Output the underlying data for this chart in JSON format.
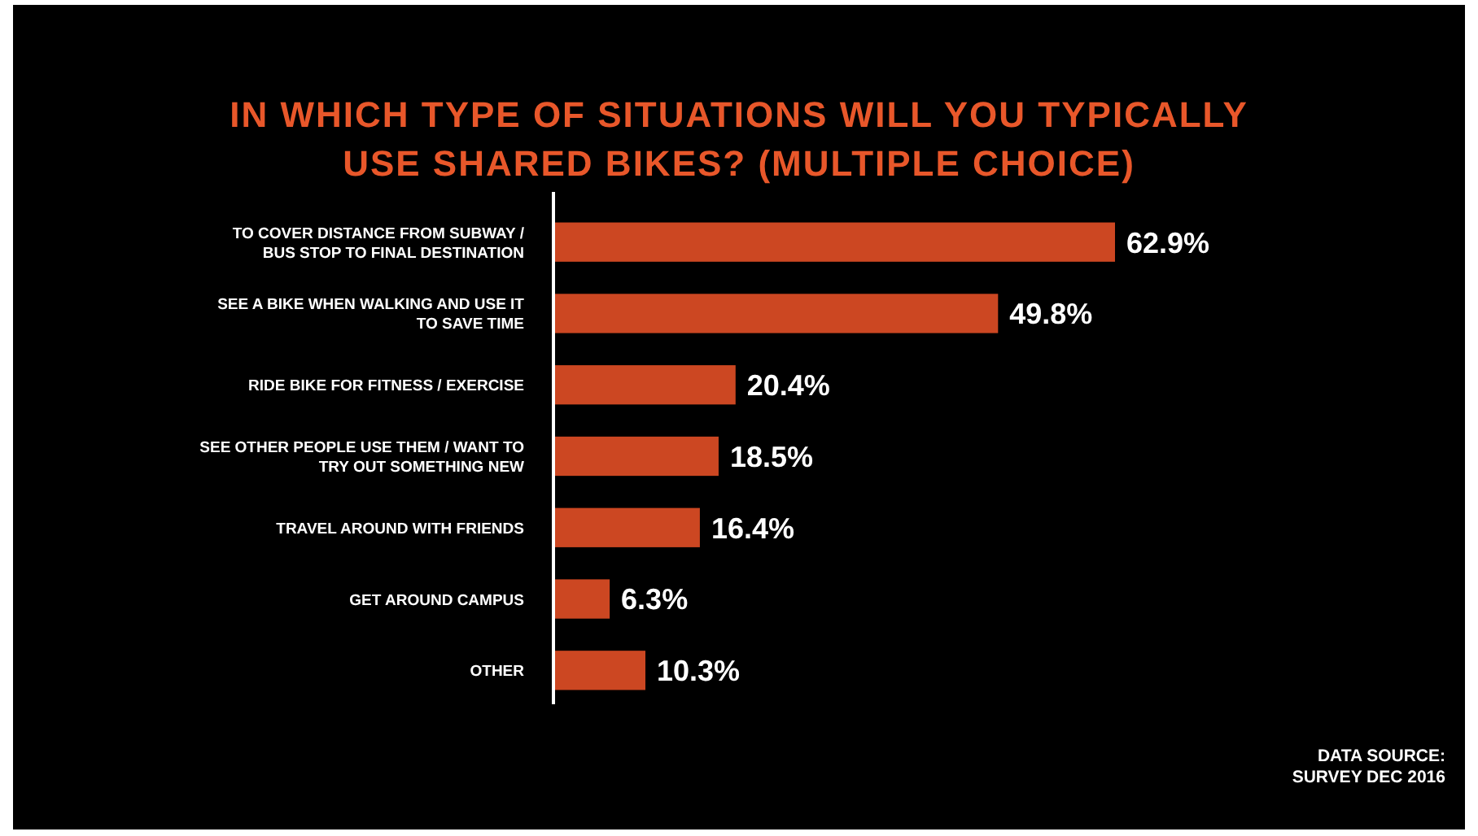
{
  "chart_data": {
    "type": "bar",
    "orientation": "horizontal",
    "title": "IN WHICH TYPE OF SITUATIONS WILL YOU TYPICALLY USE SHARED BIKES? (MULTIPLE CHOICE)",
    "categories": [
      "TO COVER DISTANCE FROM SUBWAY / BUS STOP TO FINAL DESTINATION",
      "SEE A BIKE WHEN WALKING AND USE IT TO SAVE TIME",
      "RIDE BIKE FOR FITNESS / EXERCISE",
      "SEE OTHER PEOPLE USE THEM / WANT TO TRY OUT SOMETHING NEW",
      "TRAVEL AROUND WITH FRIENDS",
      "GET AROUND CAMPUS",
      "OTHER"
    ],
    "values": [
      62.9,
      49.8,
      20.4,
      18.5,
      16.4,
      6.3,
      10.3
    ],
    "value_labels": [
      "62.9%",
      "49.8%",
      "20.4%",
      "18.5%",
      "16.4%",
      "6.3%",
      "10.3%"
    ],
    "color": "#cc4722",
    "annotations": [
      "DATA SOURCE: SURVEY DEC 2016"
    ]
  }
}
